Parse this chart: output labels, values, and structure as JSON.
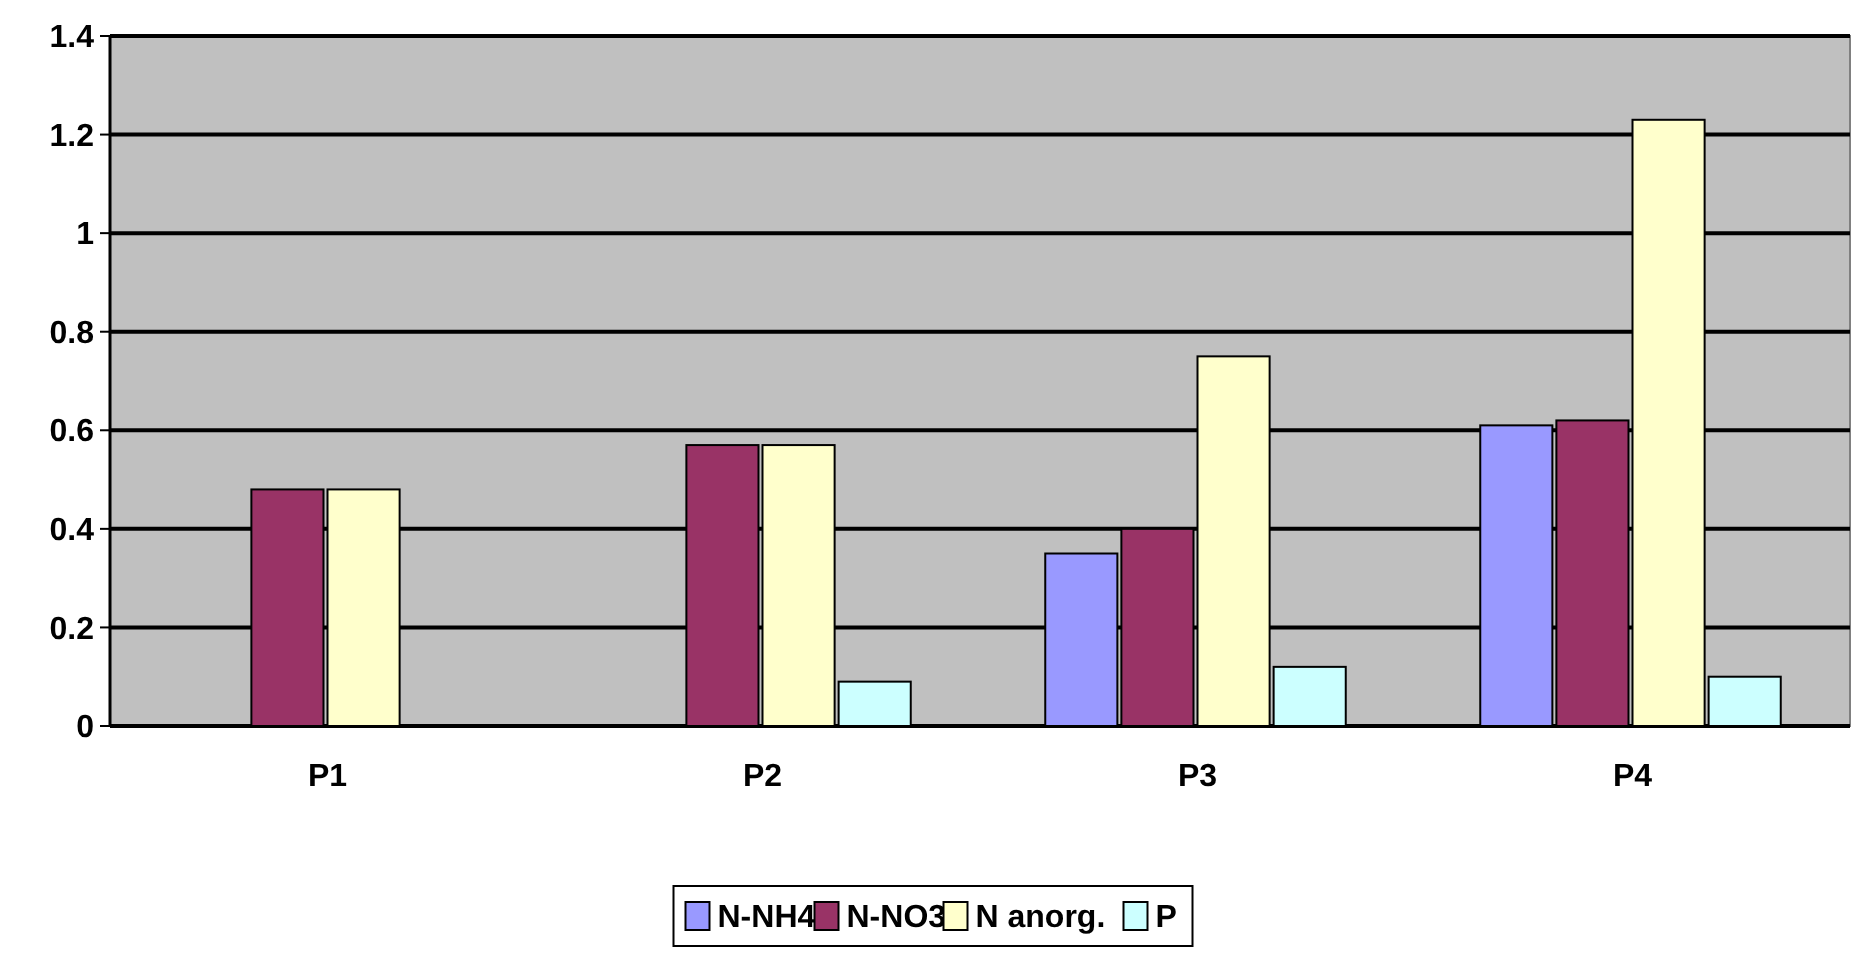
{
  "chart_data": {
    "type": "bar",
    "categories": [
      "P1",
      "P2",
      "P3",
      "P4"
    ],
    "series": [
      {
        "name": "N-NH4",
        "color": "#9999ff",
        "values": [
          0,
          0,
          0.35,
          0.61
        ]
      },
      {
        "name": "N-NO3",
        "color": "#993366",
        "values": [
          0.48,
          0.57,
          0.4,
          0.62
        ]
      },
      {
        "name": "N anorg.",
        "color": "#ffffcc",
        "values": [
          0.48,
          0.57,
          0.75,
          1.23
        ]
      },
      {
        "name": "P",
        "color": "#ccffff",
        "values": [
          0,
          0.09,
          0.12,
          0.1
        ]
      }
    ],
    "ylim": [
      0,
      1.4
    ],
    "yticks": [
      0,
      0.2,
      0.4,
      0.6,
      0.8,
      1,
      1.2,
      1.4
    ],
    "grid": "y",
    "legend": "bottom"
  }
}
